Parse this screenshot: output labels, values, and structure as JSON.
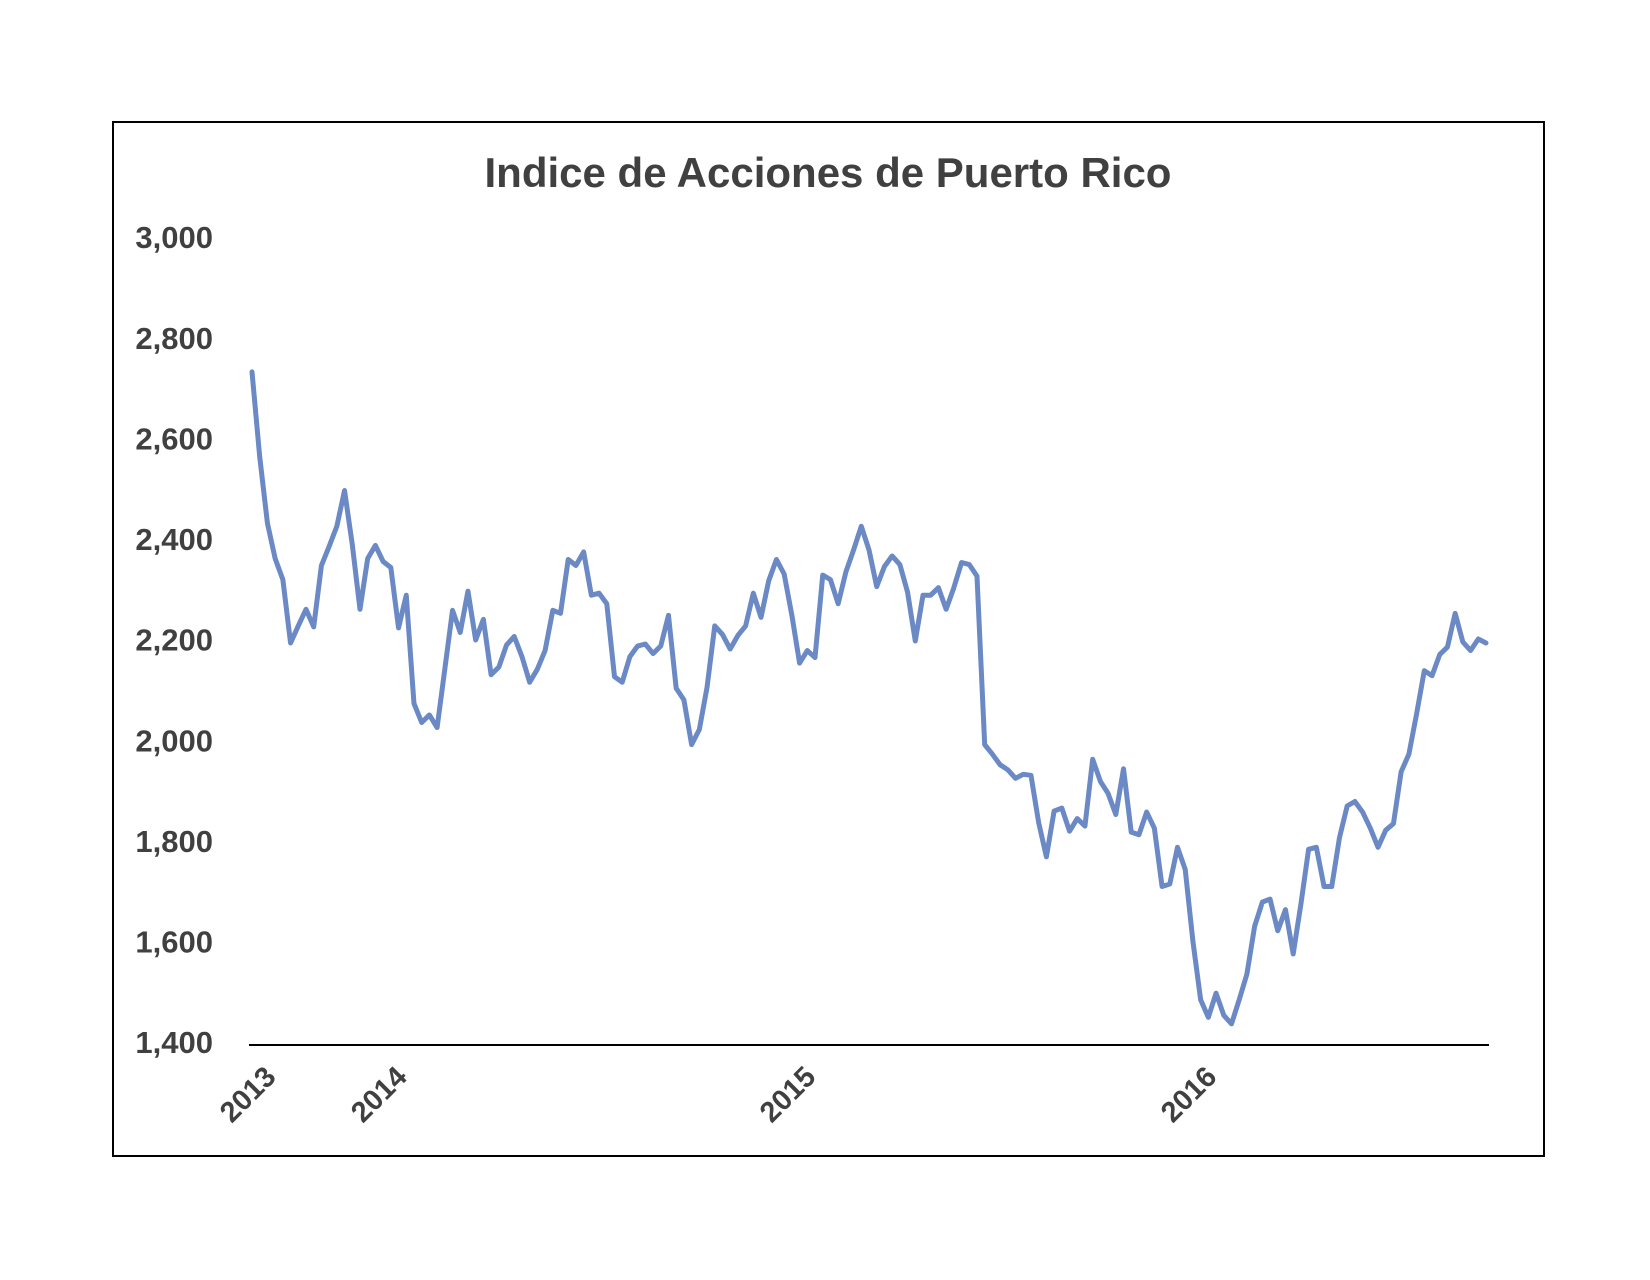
{
  "chart_data": {
    "type": "line",
    "title": "Indice de Acciones de Puerto Rico",
    "categories": [
      "2013",
      null,
      null,
      null,
      null,
      null,
      null,
      null,
      null,
      null,
      null,
      null,
      null,
      null,
      null,
      null,
      null,
      "2014",
      null,
      null,
      null,
      null,
      null,
      null,
      null,
      null,
      null,
      null,
      null,
      null,
      null,
      null,
      null,
      null,
      null,
      null,
      null,
      null,
      null,
      null,
      null,
      null,
      null,
      null,
      null,
      null,
      null,
      null,
      null,
      null,
      null,
      null,
      null,
      null,
      null,
      null,
      null,
      null,
      null,
      null,
      null,
      null,
      null,
      null,
      null,
      null,
      null,
      null,
      null,
      null,
      "2015",
      null,
      null,
      null,
      null,
      null,
      null,
      null,
      null,
      null,
      null,
      null,
      null,
      null,
      null,
      null,
      null,
      null,
      null,
      null,
      null,
      null,
      null,
      null,
      null,
      null,
      null,
      null,
      null,
      null,
      null,
      null,
      null,
      null,
      null,
      null,
      null,
      null,
      null,
      null,
      null,
      null,
      null,
      null,
      null,
      null,
      null,
      null,
      null,
      null,
      null,
      null,
      "2016",
      null,
      null,
      null,
      null,
      null,
      null,
      null,
      null,
      null,
      null,
      null,
      null,
      null,
      null,
      null,
      null,
      null,
      null,
      null,
      null,
      null,
      null,
      null,
      null,
      null,
      null,
      null,
      null,
      null,
      null,
      null,
      null,
      null,
      null,
      null,
      null,
      null,
      null
    ],
    "series": [
      {
        "name": "Indice",
        "color": "#6b89c4",
        "values": [
          2738,
          2569,
          2437,
          2367,
          2325,
          2199,
          2233,
          2266,
          2231,
          2353,
          2391,
          2431,
          2502,
          2395,
          2266,
          2367,
          2393,
          2361,
          2349,
          2229,
          2294,
          2079,
          2041,
          2056,
          2031,
          2147,
          2264,
          2220,
          2302,
          2205,
          2246,
          2136,
          2151,
          2195,
          2212,
          2172,
          2121,
          2147,
          2184,
          2264,
          2258,
          2365,
          2353,
          2380,
          2294,
          2298,
          2277,
          2132,
          2121,
          2172,
          2193,
          2197,
          2178,
          2193,
          2254,
          2109,
          2086,
          1997,
          2027,
          2111,
          2233,
          2216,
          2187,
          2214,
          2233,
          2298,
          2250,
          2323,
          2365,
          2336,
          2254,
          2159,
          2184,
          2170,
          2334,
          2325,
          2277,
          2340,
          2384,
          2431,
          2384,
          2311,
          2351,
          2372,
          2355,
          2300,
          2203,
          2294,
          2294,
          2309,
          2266,
          2309,
          2359,
          2355,
          2332,
          1997,
          1978,
          1957,
          1947,
          1930,
          1938,
          1936,
          1842,
          1774,
          1865,
          1871,
          1825,
          1850,
          1835,
          1968,
          1924,
          1900,
          1858,
          1949,
          1823,
          1818,
          1863,
          1831,
          1715,
          1720,
          1793,
          1749,
          1606,
          1490,
          1455,
          1503,
          1459,
          1442,
          1490,
          1541,
          1636,
          1684,
          1690,
          1627,
          1669,
          1581,
          1680,
          1789,
          1793,
          1715,
          1715,
          1812,
          1875,
          1884,
          1863,
          1831,
          1793,
          1827,
          1840,
          1943,
          1978,
          2058,
          2144,
          2134,
          2176,
          2191,
          2258,
          2201,
          2184,
          2207,
          2199
        ]
      }
    ],
    "ylim": [
      1400,
      3000
    ],
    "yticks": [
      {
        "value": 1400,
        "label": "1,400"
      },
      {
        "value": 1600,
        "label": "1,600"
      },
      {
        "value": 1800,
        "label": "1,800"
      },
      {
        "value": 2000,
        "label": "2,000"
      },
      {
        "value": 2200,
        "label": "2,200"
      },
      {
        "value": 2400,
        "label": "2,400"
      },
      {
        "value": 2600,
        "label": "2,600"
      },
      {
        "value": 2800,
        "label": "2,800"
      },
      {
        "value": 3000,
        "label": "3,000"
      }
    ],
    "grid": false
  }
}
